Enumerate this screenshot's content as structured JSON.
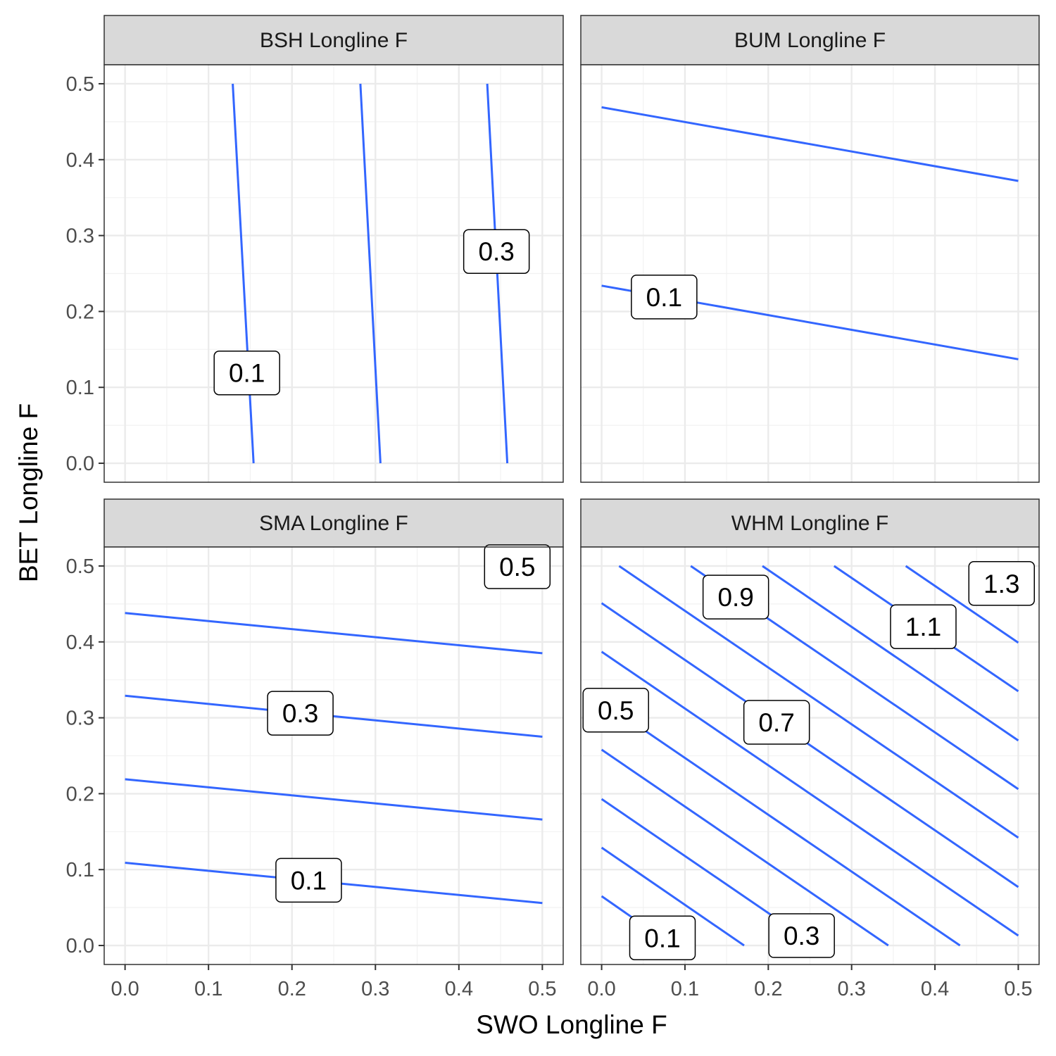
{
  "chart_data": {
    "type": "contour",
    "xlabel": "SWO Longline F",
    "ylabel": "BET Longline F",
    "xlim": [
      0,
      0.5
    ],
    "ylim": [
      0,
      0.5
    ],
    "xticks": [
      "0.0",
      "0.1",
      "0.2",
      "0.3",
      "0.4",
      "0.5"
    ],
    "yticks": [
      "0.0",
      "0.1",
      "0.2",
      "0.3",
      "0.4",
      "0.5"
    ],
    "line_color": "#3366FF",
    "grid": true,
    "panels": [
      {
        "title": "BSH Longline F",
        "contours": [
          {
            "level": 0.1,
            "points": [
              [
                0.154,
                0.0
              ],
              [
                0.129,
                0.5
              ]
            ]
          },
          {
            "level": 0.2,
            "points": [
              [
                0.306,
                0.0
              ],
              [
                0.282,
                0.5
              ]
            ]
          },
          {
            "level": 0.3,
            "points": [
              [
                0.458,
                0.0
              ],
              [
                0.434,
                0.5
              ]
            ]
          }
        ],
        "labels": [
          {
            "text": "0.1",
            "x": 0.146,
            "y": 0.119
          },
          {
            "text": "0.3",
            "x": 0.445,
            "y": 0.279
          }
        ]
      },
      {
        "title": "BUM Longline F",
        "contours": [
          {
            "level": 0.1,
            "points": [
              [
                0.0,
                0.234
              ],
              [
                0.5,
                0.137
              ]
            ]
          },
          {
            "level": 0.2,
            "points": [
              [
                0.0,
                0.469
              ],
              [
                0.5,
                0.372
              ]
            ]
          }
        ],
        "labels": [
          {
            "text": "0.1",
            "x": 0.075,
            "y": 0.219
          }
        ]
      },
      {
        "title": "SMA Longline F",
        "contours": [
          {
            "level": 0.1,
            "points": [
              [
                0.0,
                0.109
              ],
              [
                0.5,
                0.056
              ]
            ]
          },
          {
            "level": 0.2,
            "points": [
              [
                0.0,
                0.219
              ],
              [
                0.5,
                0.166
              ]
            ]
          },
          {
            "level": 0.3,
            "points": [
              [
                0.0,
                0.329
              ],
              [
                0.5,
                0.275
              ]
            ]
          },
          {
            "level": 0.4,
            "points": [
              [
                0.0,
                0.438
              ],
              [
                0.5,
                0.385
              ]
            ]
          }
        ],
        "labels": [
          {
            "text": "0.1",
            "x": 0.22,
            "y": 0.086
          },
          {
            "text": "0.3",
            "x": 0.21,
            "y": 0.306
          },
          {
            "text": "0.5",
            "x": 0.47,
            "y": 0.499
          }
        ]
      },
      {
        "title": "WHM Longline F",
        "contours": [
          {
            "level": 0.1,
            "points": [
              [
                0.0,
                0.065
              ],
              [
                0.085,
                0.0
              ]
            ]
          },
          {
            "level": 0.2,
            "points": [
              [
                0.0,
                0.129
              ],
              [
                0.171,
                0.0
              ]
            ]
          },
          {
            "level": 0.3,
            "points": [
              [
                0.0,
                0.193
              ],
              [
                0.257,
                0.0
              ]
            ]
          },
          {
            "level": 0.4,
            "points": [
              [
                0.0,
                0.258
              ],
              [
                0.344,
                0.0
              ]
            ]
          },
          {
            "level": 0.5,
            "points": [
              [
                0.0,
                0.322
              ],
              [
                0.43,
                0.0
              ]
            ]
          },
          {
            "level": 0.6,
            "points": [
              [
                0.0,
                0.387
              ],
              [
                0.5,
                0.013
              ]
            ]
          },
          {
            "level": 0.7,
            "points": [
              [
                0.0,
                0.451
              ],
              [
                0.5,
                0.077
              ]
            ]
          },
          {
            "level": 0.8,
            "points": [
              [
                0.021,
                0.5
              ],
              [
                0.5,
                0.142
              ]
            ]
          },
          {
            "level": 0.9,
            "points": [
              [
                0.107,
                0.5
              ],
              [
                0.5,
                0.206
              ]
            ]
          },
          {
            "level": 1.0,
            "points": [
              [
                0.193,
                0.5
              ],
              [
                0.5,
                0.27
              ]
            ]
          },
          {
            "level": 1.1,
            "points": [
              [
                0.279,
                0.5
              ],
              [
                0.5,
                0.335
              ]
            ]
          },
          {
            "level": 1.2,
            "points": [
              [
                0.365,
                0.5
              ],
              [
                0.5,
                0.399
              ]
            ]
          }
        ],
        "labels": [
          {
            "text": "0.1",
            "x": 0.073,
            "y": 0.01
          },
          {
            "text": "0.3",
            "x": 0.24,
            "y": 0.013
          },
          {
            "text": "0.5",
            "x": 0.017,
            "y": 0.31
          },
          {
            "text": "0.7",
            "x": 0.21,
            "y": 0.294
          },
          {
            "text": "0.9",
            "x": 0.161,
            "y": 0.459
          },
          {
            "text": "1.1",
            "x": 0.386,
            "y": 0.42
          },
          {
            "text": "1.3",
            "x": 0.48,
            "y": 0.477
          }
        ]
      }
    ]
  }
}
